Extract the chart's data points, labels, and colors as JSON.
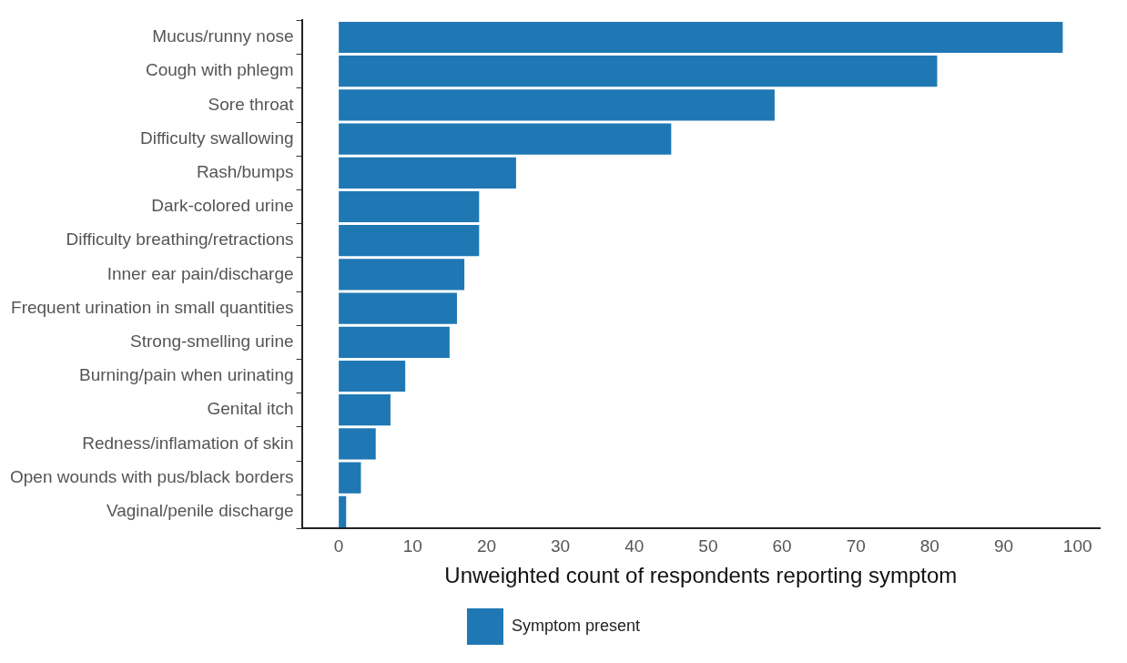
{
  "chart_data": {
    "type": "bar",
    "orientation": "horizontal",
    "xlabel": "Unweighted count of respondents reporting symptom",
    "categories": [
      "Mucus/runny nose",
      "Cough with phlegm",
      "Sore throat",
      "Difficulty swallowing",
      "Rash/bumps",
      "Dark-colored urine",
      "Difficulty breathing/retractions",
      "Inner ear pain/discharge",
      "Frequent urination in small quantities",
      "Strong-smelling urine",
      "Burning/pain when urinating",
      "Genital itch",
      "Redness/inflamation of skin",
      "Open wounds with pus/black borders",
      "Vaginal/penile discharge"
    ],
    "series": [
      {
        "name": "Symptom present",
        "color": "#1f78b4",
        "values": [
          98,
          81,
          59,
          45,
          24,
          19,
          19,
          17,
          16,
          15,
          9,
          7,
          5,
          3,
          1
        ]
      }
    ],
    "xlim": [
      -5,
      103
    ],
    "xticks": [
      0,
      10,
      20,
      30,
      40,
      50,
      60,
      70,
      80,
      90,
      100
    ],
    "grid": false,
    "legend": "bottom"
  }
}
